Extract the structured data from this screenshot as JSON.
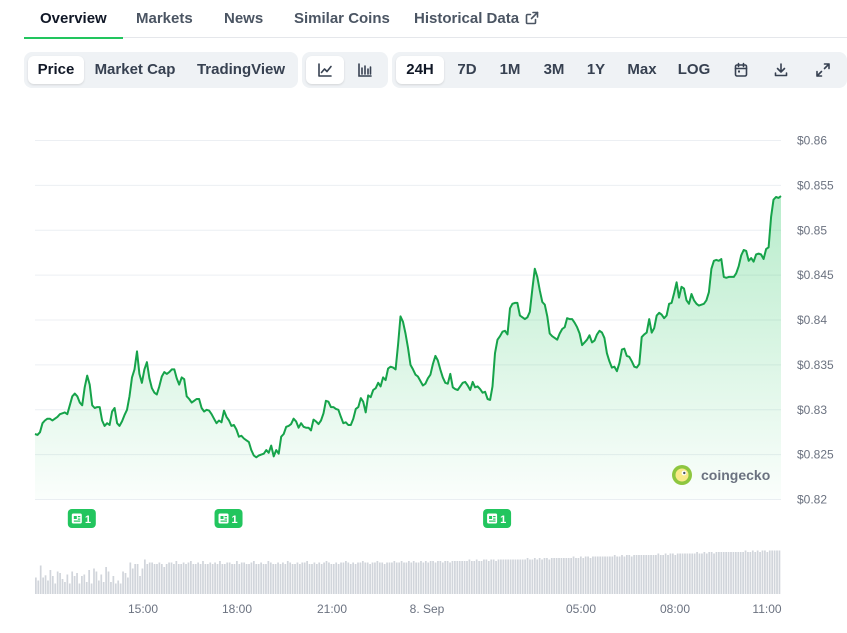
{
  "tabs": [
    {
      "label": "Overview",
      "active": true
    },
    {
      "label": "Markets",
      "active": false
    },
    {
      "label": "News",
      "active": false
    },
    {
      "label": "Similar Coins",
      "active": false
    },
    {
      "label": "Historical Data",
      "active": false,
      "icon": "external-link-icon"
    }
  ],
  "toolbar": {
    "data_types": [
      {
        "label": "Price",
        "active": true
      },
      {
        "label": "Market Cap",
        "active": false
      },
      {
        "label": "TradingView",
        "active": false
      }
    ],
    "chart_styles": [
      {
        "icon": "line-chart-icon",
        "active": true
      },
      {
        "icon": "candlestick-chart-icon",
        "active": false
      }
    ],
    "ranges": [
      {
        "label": "24H",
        "active": true
      },
      {
        "label": "7D",
        "active": false
      },
      {
        "label": "1M",
        "active": false
      },
      {
        "label": "3M",
        "active": false
      },
      {
        "label": "1Y",
        "active": false
      },
      {
        "label": "Max",
        "active": false
      },
      {
        "label": "LOG",
        "active": false
      }
    ],
    "actions": [
      {
        "icon": "calendar-icon"
      },
      {
        "icon": "download-icon"
      },
      {
        "icon": "fullscreen-icon"
      }
    ]
  },
  "colors": {
    "line": "#16a34a",
    "area_top": "#22c55e",
    "badge": "#22c55e",
    "accent": "#22c55e",
    "volume": "#d1d5db"
  },
  "watermark": {
    "text": "coingecko",
    "icon": "coingecko-logo-icon"
  },
  "chart_data": {
    "type": "line",
    "x_tick_labels": [
      "15:00",
      "18:00",
      "21:00",
      "8. Sep",
      "05:00",
      "08:00",
      "11:00"
    ],
    "y_tick_labels": [
      "$0.86",
      "$0.855",
      "$0.85",
      "$0.845",
      "$0.84",
      "$0.835",
      "$0.83",
      "$0.825",
      "$0.82"
    ],
    "ylim": [
      0.82,
      0.86
    ],
    "grid": true,
    "series": [
      {
        "values": [
          0.8273,
          0.8272,
          0.8275,
          0.8285,
          0.8288,
          0.829,
          0.829,
          0.8288,
          0.829,
          0.8292,
          0.8295,
          0.8296,
          0.8297,
          0.8295,
          0.8305,
          0.8315,
          0.8318,
          0.8315,
          0.8308,
          0.8305,
          0.8325,
          0.8338,
          0.8328,
          0.8305,
          0.8302,
          0.8303,
          0.8303,
          0.8288,
          0.8282,
          0.8285,
          0.8283,
          0.8298,
          0.8302,
          0.8285,
          0.8282,
          0.8287,
          0.8294,
          0.83,
          0.8315,
          0.8336,
          0.8345,
          0.8365,
          0.834,
          0.833,
          0.8345,
          0.8353,
          0.8335,
          0.8324,
          0.8319,
          0.8317,
          0.8326,
          0.8337,
          0.8342,
          0.834,
          0.8342,
          0.8345,
          0.8345,
          0.8335,
          0.8328,
          0.8336,
          0.8334,
          0.8315,
          0.8312,
          0.8308,
          0.831,
          0.8312,
          0.8312,
          0.8302,
          0.8298,
          0.83,
          0.8299,
          0.8295,
          0.829,
          0.8285,
          0.8288,
          0.8286,
          0.8299,
          0.8292,
          0.8288,
          0.8282,
          0.8283,
          0.8278,
          0.827,
          0.8271,
          0.8268,
          0.8266,
          0.8264,
          0.8255,
          0.8249,
          0.8247,
          0.8249,
          0.825,
          0.8251,
          0.8255,
          0.8252,
          0.826,
          0.8248,
          0.8255,
          0.8251,
          0.827,
          0.8273,
          0.8281,
          0.8282,
          0.8284,
          0.829,
          0.8287,
          0.828,
          0.8285,
          0.8281,
          0.828,
          0.828,
          0.8277,
          0.8289,
          0.8287,
          0.8284,
          0.8288,
          0.8296,
          0.831,
          0.8309,
          0.8303,
          0.8303,
          0.8301,
          0.83,
          0.8292,
          0.8285,
          0.8286,
          0.8283,
          0.8283,
          0.829,
          0.8301,
          0.8303,
          0.8313,
          0.8309,
          0.8297,
          0.8316,
          0.8314,
          0.8322,
          0.8324,
          0.833,
          0.8326,
          0.8336,
          0.8333,
          0.8346,
          0.8348,
          0.8347,
          0.8345,
          0.8373,
          0.8404,
          0.8398,
          0.8385,
          0.8369,
          0.835,
          0.8345,
          0.8339,
          0.8337,
          0.8332,
          0.8327,
          0.8329,
          0.8335,
          0.8339,
          0.8351,
          0.836,
          0.8355,
          0.8345,
          0.8336,
          0.833,
          0.8329,
          0.834,
          0.8325,
          0.8323,
          0.8322,
          0.8326,
          0.833,
          0.8331,
          0.8327,
          0.8322,
          0.8331,
          0.8325,
          0.8326,
          0.8323,
          0.8319,
          0.832,
          0.8312,
          0.8311,
          0.8326,
          0.8363,
          0.8378,
          0.8382,
          0.8387,
          0.8388,
          0.8384,
          0.8413,
          0.8418,
          0.8419,
          0.8419,
          0.8405,
          0.8403,
          0.8401,
          0.8403,
          0.8409,
          0.8434,
          0.8457,
          0.8448,
          0.8433,
          0.842,
          0.8417,
          0.8404,
          0.8385,
          0.8382,
          0.838,
          0.8378,
          0.8385,
          0.839,
          0.8392,
          0.8402,
          0.8401,
          0.8401,
          0.8397,
          0.8392,
          0.8385,
          0.8372,
          0.8375,
          0.8378,
          0.8383,
          0.8375,
          0.8377,
          0.8384,
          0.8388,
          0.8386,
          0.838,
          0.8363,
          0.8354,
          0.8347,
          0.8348,
          0.8343,
          0.8352,
          0.8367,
          0.8368,
          0.836,
          0.8359,
          0.8354,
          0.8348,
          0.8347,
          0.8351,
          0.8381,
          0.8384,
          0.8386,
          0.8401,
          0.8386,
          0.8391,
          0.8405,
          0.8408,
          0.8406,
          0.8402,
          0.8405,
          0.8418,
          0.8419,
          0.843,
          0.8442,
          0.8425,
          0.8437,
          0.8435,
          0.8422,
          0.8418,
          0.8429,
          0.8422,
          0.8418,
          0.8416,
          0.8417,
          0.8418,
          0.8422,
          0.8431,
          0.8457,
          0.8466,
          0.8467,
          0.8466,
          0.8468,
          0.8448,
          0.8447,
          0.8448,
          0.8448,
          0.8448,
          0.8452,
          0.846,
          0.8472,
          0.8478,
          0.8477,
          0.8466,
          0.8469,
          0.8465,
          0.8473,
          0.8474,
          0.8473,
          0.8468,
          0.8479,
          0.8481,
          0.8515,
          0.8534,
          0.8537,
          0.8536,
          0.8538
        ]
      }
    ],
    "volume": [
      22,
      18,
      38,
      22,
      25,
      18,
      32,
      24,
      14,
      30,
      28,
      20,
      16,
      26,
      14,
      30,
      24,
      28,
      14,
      24,
      26,
      16,
      32,
      14,
      34,
      30,
      18,
      26,
      16,
      36,
      30,
      16,
      24,
      14,
      18,
      14,
      30,
      28,
      22,
      42,
      34,
      40,
      40,
      24,
      34,
      46,
      40,
      42,
      42,
      40,
      40,
      42,
      40,
      36,
      40,
      42,
      42,
      40,
      44,
      40,
      40,
      42,
      40,
      42,
      44,
      40,
      40,
      42,
      40,
      44,
      40,
      40,
      42,
      40,
      42,
      40,
      44,
      40,
      40,
      42,
      42,
      40,
      40,
      44,
      40,
      42,
      42,
      40,
      40,
      42,
      44,
      40,
      40,
      42,
      40,
      40,
      44,
      42,
      40,
      40,
      42,
      40,
      42,
      40,
      44,
      42,
      40,
      40,
      42,
      40,
      42,
      42,
      44,
      40,
      40,
      42,
      40,
      42,
      40,
      42,
      44,
      42,
      40,
      40,
      42,
      40,
      42,
      42,
      44,
      42,
      40,
      42,
      40,
      42,
      42,
      44,
      42,
      42,
      40,
      42,
      42,
      44,
      42,
      42,
      40,
      42,
      42,
      42,
      44,
      42,
      42,
      44,
      42,
      42,
      44,
      42,
      44,
      42,
      42,
      44,
      42,
      44,
      42,
      44,
      44,
      42,
      44,
      44,
      42,
      44,
      44,
      42,
      44,
      44,
      44,
      44,
      44,
      44,
      44,
      46,
      44,
      44,
      46,
      44,
      44,
      46,
      46,
      44,
      46,
      46,
      44,
      46,
      46,
      46,
      46,
      46,
      46,
      46,
      46,
      46,
      46,
      46,
      46,
      48,
      46,
      46,
      48,
      46,
      48,
      46,
      48,
      48,
      46,
      48,
      48,
      48,
      48,
      48,
      48,
      48,
      48,
      48,
      50,
      48,
      48,
      50,
      48,
      50,
      50,
      48,
      50,
      50,
      50,
      50,
      50,
      50,
      50,
      50,
      50,
      52,
      50,
      50,
      52,
      50,
      52,
      52,
      50,
      52,
      52,
      52,
      52,
      52,
      52,
      52,
      52,
      52,
      52,
      54,
      52,
      52,
      54,
      52,
      54,
      54,
      52,
      54,
      54,
      54,
      54,
      54,
      54,
      54,
      54,
      56,
      54,
      54,
      56,
      54,
      56,
      56,
      54,
      56,
      56,
      56,
      56,
      56,
      56,
      56,
      56,
      56,
      56,
      56,
      56,
      58,
      56,
      56,
      58,
      56,
      58,
      56,
      58,
      58,
      56,
      58,
      58,
      58,
      58,
      58
    ],
    "news_markers": [
      {
        "label": "1",
        "index": 14
      },
      {
        "label": "1",
        "index": 73
      },
      {
        "label": "1",
        "index": 181
      }
    ]
  }
}
